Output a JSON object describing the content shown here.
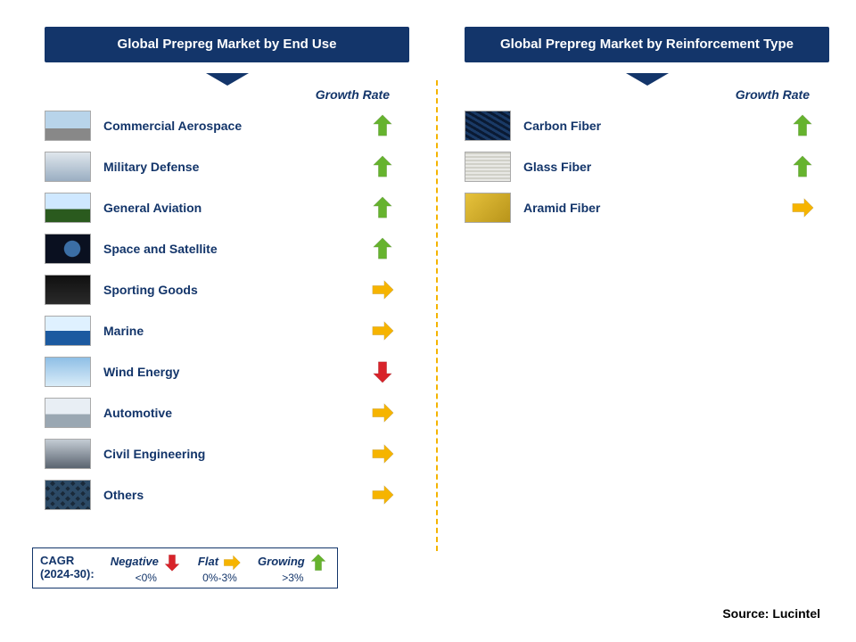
{
  "colors": {
    "brand_navy": "#13356a",
    "green": "#66b32e",
    "yellow": "#f6b400",
    "red": "#d8232a",
    "divider": "#f4b400",
    "bg": "#ffffff"
  },
  "left": {
    "title": "Global Prepreg Market by End Use",
    "growth_header": "Growth Rate",
    "rows": [
      {
        "label": "Commercial Aerospace",
        "thumb": "sky",
        "growth": "up"
      },
      {
        "label": "Military Defense",
        "thumb": "jet",
        "growth": "up"
      },
      {
        "label": "General Aviation",
        "thumb": "field",
        "growth": "up"
      },
      {
        "label": "Space and Satellite",
        "thumb": "space",
        "growth": "up"
      },
      {
        "label": "Sporting Goods",
        "thumb": "sport",
        "growth": "right"
      },
      {
        "label": "Marine",
        "thumb": "sea",
        "growth": "right"
      },
      {
        "label": "Wind Energy",
        "thumb": "wind",
        "growth": "down"
      },
      {
        "label": "Automotive",
        "thumb": "truck",
        "growth": "right"
      },
      {
        "label": "Civil Engineering",
        "thumb": "civil",
        "growth": "right"
      },
      {
        "label": "Others",
        "thumb": "weave",
        "growth": "right"
      }
    ]
  },
  "right": {
    "title": "Global Prepreg Market by Reinforcement Type",
    "growth_header": "Growth Rate",
    "rows": [
      {
        "label": "Carbon Fiber",
        "thumb": "cfiber",
        "growth": "up"
      },
      {
        "label": "Glass Fiber",
        "thumb": "gfiber",
        "growth": "up"
      },
      {
        "label": "Aramid Fiber",
        "thumb": "aramid",
        "growth": "right"
      }
    ]
  },
  "legend": {
    "lead_line1": "CAGR",
    "lead_line2": "(2024-30):",
    "items": [
      {
        "key": "Negative",
        "val": "<0%",
        "dir": "down"
      },
      {
        "key": "Flat",
        "val": "0%-3%",
        "dir": "right"
      },
      {
        "key": "Growing",
        "val": ">3%",
        "dir": "up"
      }
    ]
  },
  "source": "Source: Lucintel",
  "arrow_colors": {
    "up": "#66b32e",
    "right": "#f6b400",
    "down": "#d8232a"
  }
}
